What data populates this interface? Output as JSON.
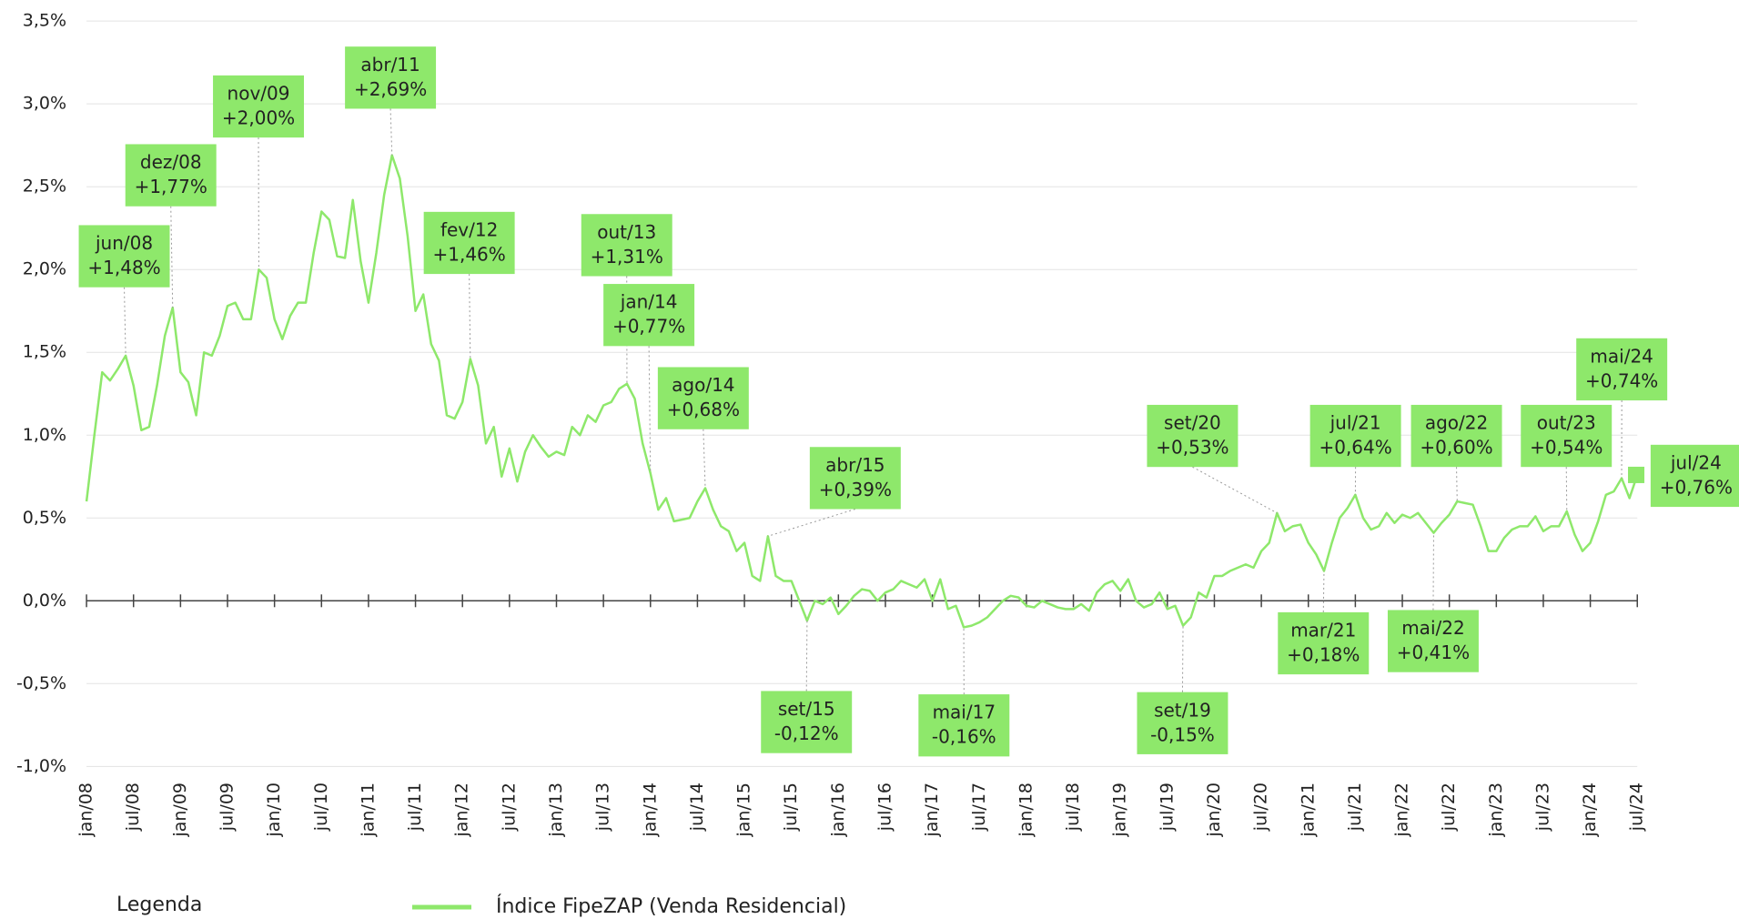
{
  "chart_data": {
    "type": "line",
    "legend_title": "Legenda",
    "categories": [
      "jan/08",
      null,
      null,
      null,
      null,
      null,
      "jul/08",
      null,
      null,
      null,
      null,
      null,
      "jan/09",
      null,
      null,
      null,
      null,
      null,
      "jul/09",
      null,
      null,
      null,
      null,
      null,
      "jan/10",
      null,
      null,
      null,
      null,
      null,
      "jul/10",
      null,
      null,
      null,
      null,
      null,
      "jan/11",
      null,
      null,
      null,
      null,
      null,
      "jul/11",
      null,
      null,
      null,
      null,
      null,
      "jan/12",
      null,
      null,
      null,
      null,
      null,
      "jul/12",
      null,
      null,
      null,
      null,
      null,
      "jan/13",
      null,
      null,
      null,
      null,
      null,
      "jul/13",
      null,
      null,
      null,
      null,
      null,
      "jan/14",
      null,
      null,
      null,
      null,
      null,
      "jul/14",
      null,
      null,
      null,
      null,
      null,
      "jan/15",
      null,
      null,
      null,
      null,
      null,
      "jul/15",
      null,
      null,
      null,
      null,
      null,
      "jan/16",
      null,
      null,
      null,
      null,
      null,
      "jul/16",
      null,
      null,
      null,
      null,
      null,
      "jan/17",
      null,
      null,
      null,
      null,
      null,
      "jul/17",
      null,
      null,
      null,
      null,
      null,
      "jan/18",
      null,
      null,
      null,
      null,
      null,
      "jul/18",
      null,
      null,
      null,
      null,
      null,
      "jan/19",
      null,
      null,
      null,
      null,
      null,
      "jul/19",
      null,
      null,
      null,
      null,
      null,
      "jan/20",
      null,
      null,
      null,
      null,
      null,
      "jul/20",
      null,
      null,
      null,
      null,
      null,
      "jan/21",
      null,
      null,
      null,
      null,
      null,
      "jul/21",
      null,
      null,
      null,
      null,
      null,
      "jan/22",
      null,
      null,
      null,
      null,
      null,
      "jul/22",
      null,
      null,
      null,
      null,
      null,
      "jan/23",
      null,
      null,
      null,
      null,
      null,
      "jul/23",
      null,
      null,
      null,
      null,
      null,
      "jan/24",
      null,
      null,
      null,
      null,
      null,
      "jul/24"
    ],
    "series": [
      {
        "name": "Índice FipeZAP (Venda Residencial)",
        "color": "#8ee86b",
        "values": [
          0.6,
          1.0,
          1.38,
          1.33,
          1.4,
          1.48,
          1.3,
          1.03,
          1.05,
          1.3,
          1.6,
          1.77,
          1.38,
          1.32,
          1.12,
          1.5,
          1.48,
          1.6,
          1.78,
          1.8,
          1.7,
          1.7,
          2.0,
          1.95,
          1.7,
          1.58,
          1.72,
          1.8,
          1.8,
          2.1,
          2.35,
          2.3,
          2.08,
          2.07,
          2.42,
          2.05,
          1.8,
          2.1,
          2.45,
          2.69,
          2.55,
          2.2,
          1.75,
          1.85,
          1.55,
          1.45,
          1.12,
          1.1,
          1.2,
          1.46,
          1.3,
          0.95,
          1.05,
          0.75,
          0.92,
          0.72,
          0.9,
          1.0,
          0.93,
          0.87,
          0.9,
          0.88,
          1.05,
          1.0,
          1.12,
          1.08,
          1.18,
          1.2,
          1.28,
          1.31,
          1.22,
          0.95,
          0.77,
          0.55,
          0.62,
          0.48,
          0.49,
          0.5,
          0.6,
          0.68,
          0.55,
          0.45,
          0.42,
          0.3,
          0.35,
          0.15,
          0.12,
          0.39,
          0.15,
          0.12,
          0.12,
          0.0,
          -0.12,
          0.0,
          -0.02,
          0.02,
          -0.08,
          -0.03,
          0.03,
          0.07,
          0.06,
          0.0,
          0.05,
          0.07,
          0.12,
          0.1,
          0.08,
          0.13,
          0.0,
          0.13,
          -0.05,
          -0.03,
          -0.16,
          -0.15,
          -0.13,
          -0.1,
          -0.05,
          0.0,
          0.03,
          0.02,
          -0.03,
          -0.04,
          0.0,
          -0.02,
          -0.04,
          -0.05,
          -0.05,
          -0.02,
          -0.06,
          0.05,
          0.1,
          0.12,
          0.06,
          0.13,
          0.0,
          -0.04,
          -0.02,
          0.05,
          -0.05,
          -0.03,
          -0.15,
          -0.1,
          0.05,
          0.02,
          0.15,
          0.15,
          0.18,
          0.2,
          0.22,
          0.2,
          0.3,
          0.35,
          0.53,
          0.42,
          0.45,
          0.46,
          0.35,
          0.28,
          0.18,
          0.35,
          0.5,
          0.56,
          0.64,
          0.5,
          0.43,
          0.45,
          0.53,
          0.47,
          0.52,
          0.5,
          0.53,
          0.47,
          0.41,
          0.47,
          0.52,
          0.6,
          0.59,
          0.58,
          0.45,
          0.3,
          0.3,
          0.38,
          0.43,
          0.45,
          0.45,
          0.51,
          0.42,
          0.45,
          0.45,
          0.54,
          0.4,
          0.3,
          0.35,
          0.48,
          0.64,
          0.66,
          0.74,
          0.62,
          0.76
        ],
        "point_names": [
          null,
          null,
          null,
          null,
          null,
          "jun/08",
          null,
          null,
          null,
          null,
          null,
          "dez/08",
          null,
          null,
          null,
          null,
          null,
          null,
          null,
          null,
          null,
          null,
          "nov/09",
          null,
          null,
          null,
          null,
          null,
          null,
          null,
          null,
          null,
          null,
          null,
          null,
          null,
          null,
          null,
          null,
          "abr/11",
          null,
          null,
          null,
          null,
          null,
          null,
          null,
          null,
          null,
          "fev/12",
          null,
          null,
          null,
          null,
          null,
          null,
          null,
          null,
          null,
          null,
          null,
          null,
          null,
          null,
          null,
          null,
          null,
          null,
          null,
          "out/13",
          null,
          null,
          "jan/14",
          null,
          null,
          null,
          null,
          null,
          null,
          "ago/14",
          null,
          null,
          null,
          null,
          null,
          null,
          null,
          "abr/15",
          null,
          null,
          null,
          null,
          "set/15",
          null,
          null,
          null,
          null,
          null,
          null,
          null,
          null,
          null,
          null,
          null,
          null,
          null,
          null,
          null,
          null,
          null,
          null,
          null,
          "mai/17",
          null,
          null,
          null,
          null,
          null,
          null,
          null,
          null,
          null,
          null,
          null,
          null,
          null,
          null,
          null,
          null,
          null,
          null,
          null,
          null,
          null,
          null,
          null,
          null,
          null,
          null,
          null,
          "set/19",
          null,
          null,
          null,
          null,
          null,
          null,
          null,
          null,
          null,
          null,
          null,
          "set/20",
          null,
          null,
          null,
          null,
          null,
          "mar/21",
          null,
          null,
          null,
          "jul/21",
          null,
          null,
          null,
          null,
          null,
          null,
          null,
          null,
          null,
          "mai/22",
          null,
          null,
          "ago/22",
          null,
          null,
          null,
          null,
          null,
          null,
          null,
          null,
          null,
          null,
          null,
          null,
          null,
          "out/23",
          null,
          null,
          null,
          null,
          null,
          null,
          "mai/24",
          null,
          "jul/24"
        ],
        "value_labels": [
          null,
          null,
          null,
          null,
          null,
          "+1,48%",
          null,
          null,
          null,
          null,
          null,
          "+1,77%",
          null,
          null,
          null,
          null,
          null,
          null,
          null,
          null,
          null,
          null,
          "+2,00%",
          null,
          null,
          null,
          null,
          null,
          null,
          null,
          null,
          null,
          null,
          null,
          null,
          null,
          null,
          null,
          null,
          "+2,69%",
          null,
          null,
          null,
          null,
          null,
          null,
          null,
          null,
          null,
          "+1,46%",
          null,
          null,
          null,
          null,
          null,
          null,
          null,
          null,
          null,
          null,
          null,
          null,
          null,
          null,
          null,
          null,
          null,
          null,
          null,
          "+1,31%",
          null,
          null,
          "+0,77%",
          null,
          null,
          null,
          null,
          null,
          null,
          "+0,68%",
          null,
          null,
          null,
          null,
          null,
          null,
          null,
          "+0,39%",
          null,
          null,
          null,
          null,
          "-0,12%",
          null,
          null,
          null,
          null,
          null,
          null,
          null,
          null,
          null,
          null,
          null,
          null,
          null,
          null,
          null,
          null,
          null,
          null,
          null,
          "-0,16%",
          null,
          null,
          null,
          null,
          null,
          null,
          null,
          null,
          null,
          null,
          null,
          null,
          null,
          null,
          null,
          null,
          null,
          null,
          null,
          null,
          null,
          null,
          null,
          null,
          null,
          null,
          null,
          "-0,15%",
          null,
          null,
          null,
          null,
          null,
          null,
          null,
          null,
          null,
          null,
          null,
          "+0,53%",
          null,
          null,
          null,
          null,
          null,
          "+0,18%",
          null,
          null,
          null,
          "+0,64%",
          null,
          null,
          null,
          null,
          null,
          null,
          null,
          null,
          null,
          "+0,41%",
          null,
          null,
          "+0,60%",
          null,
          null,
          null,
          null,
          null,
          null,
          null,
          null,
          null,
          null,
          null,
          null,
          null,
          "+0,54%",
          null,
          null,
          null,
          null,
          null,
          null,
          "+0,74%",
          null,
          "+0,76%"
        ]
      }
    ],
    "ylim": [
      -1,
      3.5
    ],
    "yticks": [
      {
        "value": -1,
        "label": "-1,0%"
      },
      {
        "value": -0.5,
        "label": "-0,5%"
      },
      {
        "value": 0,
        "label": "0,0%"
      },
      {
        "value": 0.5,
        "label": "0,5%"
      },
      {
        "value": 1,
        "label": "1,0%"
      },
      {
        "value": 1.5,
        "label": "1,5%"
      },
      {
        "value": 2,
        "label": "2,0%"
      },
      {
        "value": 2.5,
        "label": "2,5%"
      },
      {
        "value": 3,
        "label": "3,0%"
      },
      {
        "value": 3.5,
        "label": "3,5%"
      }
    ],
    "grid": true
  }
}
